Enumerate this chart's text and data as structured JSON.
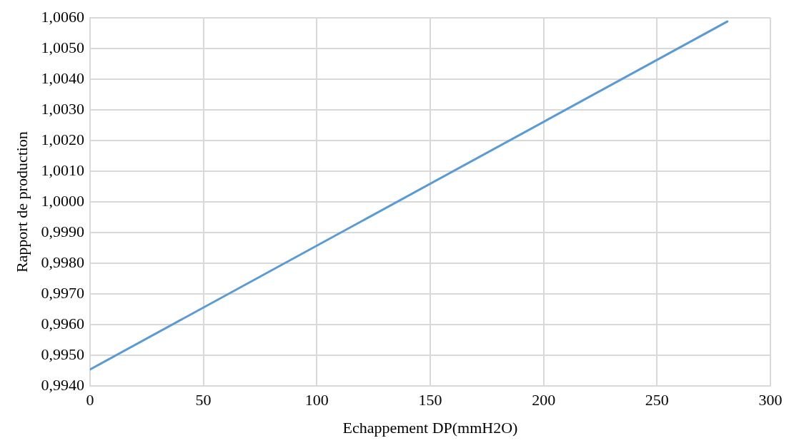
{
  "chart_data": {
    "type": "line",
    "xlabel": "Echappement DP(mmH2O)",
    "ylabel": "Rapport de production",
    "series": [
      {
        "color": "#5b9bd5",
        "x": [
          0,
          281
        ],
        "values": [
          0.99454,
          1.00588
        ]
      }
    ],
    "xlim": [
      0,
      300
    ],
    "xticks": [
      0,
      50,
      100,
      150,
      200,
      250,
      300
    ],
    "ylim": [
      0.994,
      1.006
    ],
    "yticks": [
      {
        "value": 0.994,
        "label": "0,9940"
      },
      {
        "value": 0.995,
        "label": "0,9950"
      },
      {
        "value": 0.996,
        "label": "0,9960"
      },
      {
        "value": 0.997,
        "label": "0,9970"
      },
      {
        "value": 0.998,
        "label": "0,9980"
      },
      {
        "value": 0.999,
        "label": "0,9990"
      },
      {
        "value": 1.0,
        "label": "1,0000"
      },
      {
        "value": 1.001,
        "label": "1,0010"
      },
      {
        "value": 1.002,
        "label": "1,0020"
      },
      {
        "value": 1.003,
        "label": "1,0030"
      },
      {
        "value": 1.004,
        "label": "1,0040"
      },
      {
        "value": 1.005,
        "label": "1,0050"
      },
      {
        "value": 1.006,
        "label": "1,0060"
      }
    ],
    "grid": true,
    "legend": false,
    "marker": "none",
    "line_style": "solid"
  }
}
